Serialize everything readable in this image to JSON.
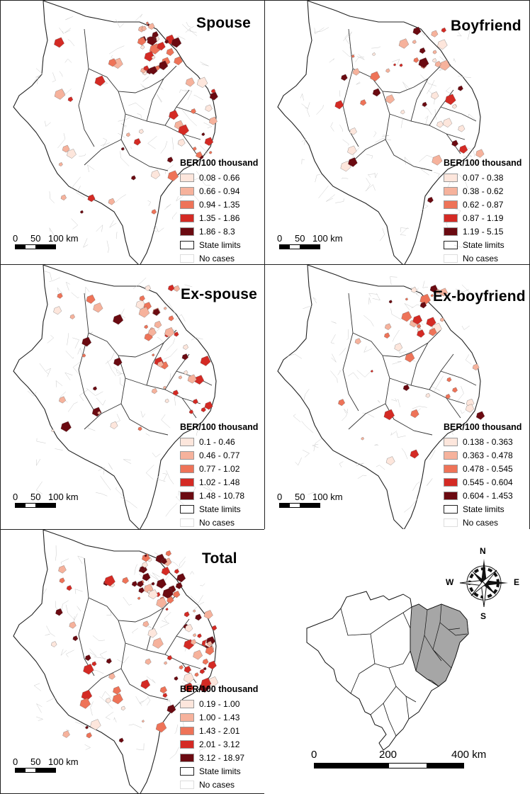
{
  "panels": [
    {
      "id": "spouse",
      "title": "Spouse",
      "legend_title": "BER/100 thousand",
      "classes": [
        {
          "label": "0.08 - 0.66",
          "color": "#fde6dc"
        },
        {
          "label": "0.66 - 0.94",
          "color": "#f6b29c"
        },
        {
          "label": "0.94 - 1.35",
          "color": "#ee7358"
        },
        {
          "label": "1.35 - 1.86",
          "color": "#d42a24"
        },
        {
          "label": "1.86 - 8.3",
          "color": "#6b0a11"
        }
      ],
      "state_limits_label": "State limits",
      "no_cases_label": "No cases",
      "scale": {
        "l0": "0",
        "l50": "50",
        "l100": "100 km"
      }
    },
    {
      "id": "boyfriend",
      "title": "Boyfriend",
      "legend_title": "BER/100 thousand",
      "classes": [
        {
          "label": "0.07 - 0.38",
          "color": "#fde6dc"
        },
        {
          "label": "0.38 - 0.62",
          "color": "#f6b29c"
        },
        {
          "label": "0.62 - 0.87",
          "color": "#ee7358"
        },
        {
          "label": "0.87 - 1.19",
          "color": "#d42a24"
        },
        {
          "label": "1.19 - 5.15",
          "color": "#6b0a11"
        }
      ],
      "state_limits_label": "State limits",
      "no_cases_label": "No cases",
      "scale": {
        "l0": "0",
        "l50": "50",
        "l100": "100 km"
      }
    },
    {
      "id": "ex-spouse",
      "title": "Ex-spouse",
      "legend_title": "BER/100 thousand",
      "classes": [
        {
          "label": "0.1 - 0.46",
          "color": "#fde6dc"
        },
        {
          "label": "0.46 - 0.77",
          "color": "#f6b29c"
        },
        {
          "label": "0.77 - 1.02",
          "color": "#ee7358"
        },
        {
          "label": "1.02 - 1.48",
          "color": "#d42a24"
        },
        {
          "label": "1.48 - 10.78",
          "color": "#6b0a11"
        }
      ],
      "state_limits_label": "State limits",
      "no_cases_label": "No cases",
      "scale": {
        "l0": "0",
        "l50": "50",
        "l100": "100 km"
      }
    },
    {
      "id": "ex-boyfriend",
      "title": "Ex-boyfriend",
      "legend_title": "BER/100 thousand",
      "classes": [
        {
          "label": "0.138 - 0.363",
          "color": "#fde6dc"
        },
        {
          "label": "0.363 - 0.478",
          "color": "#f6b29c"
        },
        {
          "label": "0.478 - 0.545",
          "color": "#ee7358"
        },
        {
          "label": "0.545 - 0.604",
          "color": "#d42a24"
        },
        {
          "label": "0.604 - 1.453",
          "color": "#6b0a11"
        }
      ],
      "state_limits_label": "State limits",
      "no_cases_label": "No cases",
      "scale": {
        "l0": "0",
        "l50": "50",
        "l100": "100 km"
      }
    },
    {
      "id": "total",
      "title": "Total",
      "legend_title": "BER/100 thousand",
      "classes": [
        {
          "label": "0.19 - 1.00",
          "color": "#fde6dc"
        },
        {
          "label": "1.00 - 1.43",
          "color": "#f6b29c"
        },
        {
          "label": "1.43 - 2.01",
          "color": "#ee7358"
        },
        {
          "label": "2.01 - 3.12",
          "color": "#d42a24"
        },
        {
          "label": "3.12 - 18.97",
          "color": "#6b0a11"
        }
      ],
      "state_limits_label": "State limits",
      "no_cases_label": "No cases",
      "scale": {
        "l0": "0",
        "l50": "50",
        "l100": "100 km"
      }
    }
  ],
  "locator": {
    "compass": {
      "n": "N",
      "s": "S",
      "e": "E",
      "w": "W"
    },
    "scale": {
      "l0": "0",
      "l200": "200",
      "l400": "400 km"
    },
    "highlight_color": "#a6a6a6"
  }
}
